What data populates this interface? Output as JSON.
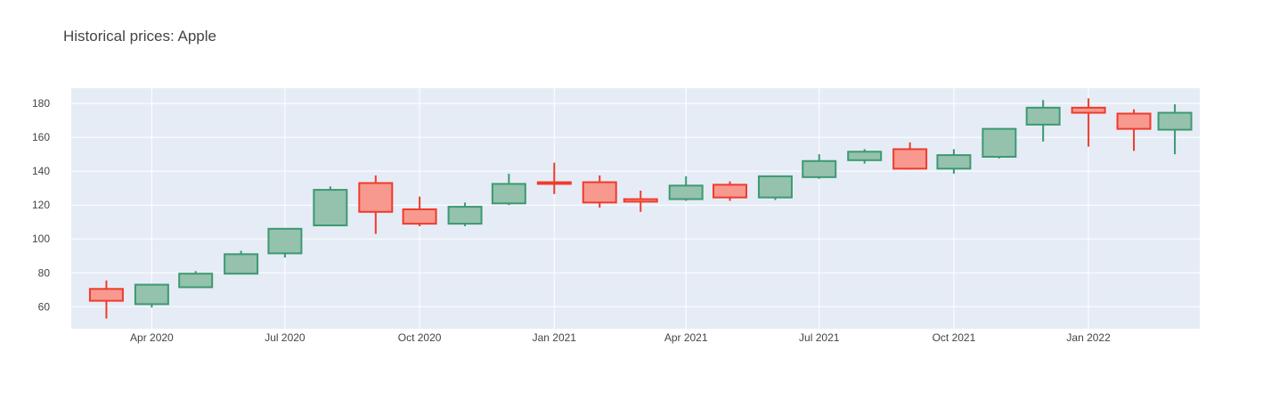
{
  "chart_data": {
    "type": "candlestick",
    "title": "Historical prices: Apple",
    "xlabel": "",
    "ylabel": "",
    "ylim": [
      47,
      189
    ],
    "xlim": [
      "2020-02-06",
      "2022-03-18"
    ],
    "grid": true,
    "legend": "none",
    "colors": {
      "increasing_line": "#3d9970",
      "increasing_fill": "#95c2ad",
      "decreasing_line": "#ef3b2c",
      "decreasing_fill": "#f7998f",
      "plot_background": "#e5ecf6",
      "grid": "#ffffff",
      "title": "#444444"
    },
    "y_ticks": [
      60,
      80,
      100,
      120,
      140,
      160,
      180
    ],
    "x_ticks": [
      {
        "date": "2020-04-01",
        "label": "Apr 2020"
      },
      {
        "date": "2020-07-01",
        "label": "Jul 2020"
      },
      {
        "date": "2020-10-01",
        "label": "Oct 2020"
      },
      {
        "date": "2021-01-01",
        "label": "Jan 2021"
      },
      {
        "date": "2021-04-01",
        "label": "Apr 2021"
      },
      {
        "date": "2021-07-01",
        "label": "Jul 2021"
      },
      {
        "date": "2021-10-01",
        "label": "Oct 2021"
      },
      {
        "date": "2022-01-01",
        "label": "Jan 2022"
      }
    ],
    "candles": [
      {
        "date": "2020-03-01",
        "open": 70.5,
        "high": 75.5,
        "low": 53.0,
        "close": 63.5
      },
      {
        "date": "2020-04-01",
        "open": 61.5,
        "high": 73.5,
        "low": 59.5,
        "close": 73.0
      },
      {
        "date": "2020-05-01",
        "open": 71.5,
        "high": 81.0,
        "low": 71.5,
        "close": 79.5
      },
      {
        "date": "2020-06-01",
        "open": 79.5,
        "high": 93.0,
        "low": 79.5,
        "close": 91.0
      },
      {
        "date": "2020-07-01",
        "open": 91.5,
        "high": 106.5,
        "low": 89.0,
        "close": 106.0
      },
      {
        "date": "2020-08-01",
        "open": 108.0,
        "high": 131.0,
        "low": 108.0,
        "close": 129.0
      },
      {
        "date": "2020-09-01",
        "open": 133.0,
        "high": 137.5,
        "low": 103.0,
        "close": 116.0
      },
      {
        "date": "2020-10-01",
        "open": 117.5,
        "high": 125.0,
        "low": 107.5,
        "close": 109.0
      },
      {
        "date": "2020-11-01",
        "open": 109.0,
        "high": 121.5,
        "low": 107.5,
        "close": 119.0
      },
      {
        "date": "2020-12-01",
        "open": 121.0,
        "high": 138.5,
        "low": 120.0,
        "close": 132.5
      },
      {
        "date": "2021-01-01",
        "open": 133.5,
        "high": 145.0,
        "low": 126.5,
        "close": 132.5
      },
      {
        "date": "2021-02-01",
        "open": 133.5,
        "high": 137.5,
        "low": 118.5,
        "close": 121.5
      },
      {
        "date": "2021-03-01",
        "open": 123.5,
        "high": 128.5,
        "low": 116.0,
        "close": 122.0
      },
      {
        "date": "2021-04-01",
        "open": 123.5,
        "high": 137.0,
        "low": 122.5,
        "close": 131.5
      },
      {
        "date": "2021-05-01",
        "open": 132.0,
        "high": 134.0,
        "low": 122.5,
        "close": 124.5
      },
      {
        "date": "2021-06-01",
        "open": 124.5,
        "high": 137.5,
        "low": 123.0,
        "close": 137.0
      },
      {
        "date": "2021-07-01",
        "open": 136.5,
        "high": 150.0,
        "low": 135.5,
        "close": 146.0
      },
      {
        "date": "2021-08-01",
        "open": 146.5,
        "high": 153.0,
        "low": 144.5,
        "close": 151.5
      },
      {
        "date": "2021-09-01",
        "open": 153.0,
        "high": 157.0,
        "low": 141.0,
        "close": 141.5
      },
      {
        "date": "2021-10-01",
        "open": 141.5,
        "high": 153.0,
        "low": 138.5,
        "close": 149.5
      },
      {
        "date": "2021-11-01",
        "open": 148.5,
        "high": 165.5,
        "low": 147.5,
        "close": 165.0
      },
      {
        "date": "2021-12-01",
        "open": 167.5,
        "high": 182.0,
        "low": 157.5,
        "close": 177.5
      },
      {
        "date": "2022-01-01",
        "open": 177.5,
        "high": 183.0,
        "low": 154.5,
        "close": 174.5
      },
      {
        "date": "2022-02-01",
        "open": 174.0,
        "high": 176.5,
        "low": 152.0,
        "close": 165.0
      },
      {
        "date": "2022-03-01",
        "open": 164.5,
        "high": 179.5,
        "low": 150.0,
        "close": 174.5
      }
    ]
  }
}
